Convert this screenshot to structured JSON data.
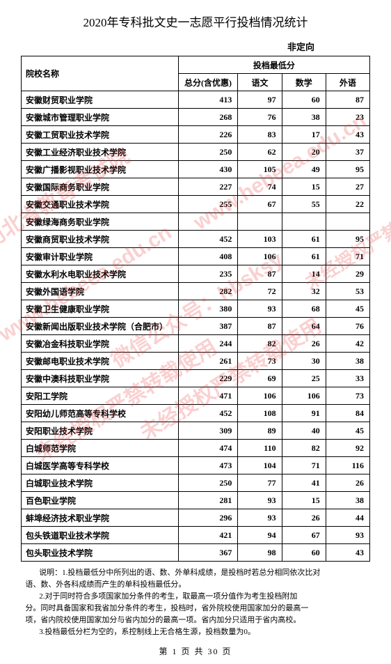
{
  "title": "2020年专科批文史一志愿平行投档情况统计",
  "subtitle": "非定向",
  "header": {
    "school": "院校名称",
    "score_group": "投档最低分",
    "total": "总分(含优惠)",
    "chinese": "语文",
    "math": "数学",
    "foreign": "外语"
  },
  "rows": [
    {
      "name": "安徽财贸职业学院",
      "total": "413",
      "ch": "97",
      "ma": "60",
      "fo": "87"
    },
    {
      "name": "安徽城市管理职业学院",
      "total": "268",
      "ch": "76",
      "ma": "38",
      "fo": "23"
    },
    {
      "name": "安徽工贸职业技术学院",
      "total": "226",
      "ch": "83",
      "ma": "17",
      "fo": "43"
    },
    {
      "name": "安徽工业经济职业技术学院",
      "total": "250",
      "ch": "62",
      "ma": "20",
      "fo": "37"
    },
    {
      "name": "安徽广播影视职业技术学院",
      "total": "430",
      "ch": "105",
      "ma": "49",
      "fo": "95"
    },
    {
      "name": "安徽国际商务职业学院",
      "total": "227",
      "ch": "74",
      "ma": "15",
      "fo": "27"
    },
    {
      "name": "安徽交通职业技术学院",
      "total": "255",
      "ch": "67",
      "ma": "55",
      "fo": "22"
    },
    {
      "name": "安徽绿海商务职业学院",
      "total": "",
      "ch": "",
      "ma": "",
      "fo": ""
    },
    {
      "name": "安徽商贸职业技术学院",
      "total": "452",
      "ch": "103",
      "ma": "61",
      "fo": "95"
    },
    {
      "name": "安徽审计职业学院",
      "total": "408",
      "ch": "106",
      "ma": "61",
      "fo": "71"
    },
    {
      "name": "安徽水利水电职业技术学院",
      "total": "235",
      "ch": "87",
      "ma": "14",
      "fo": "29"
    },
    {
      "name": "安徽外国语学院",
      "total": "282",
      "ch": "72",
      "ma": "32",
      "fo": "53"
    },
    {
      "name": "安徽卫生健康职业学院",
      "total": "380",
      "ch": "93",
      "ma": "68",
      "fo": "45"
    },
    {
      "name": "安徽新闻出版职业技术学院（合肥市）",
      "total": "387",
      "ch": "87",
      "ma": "64",
      "fo": "76"
    },
    {
      "name": "安徽冶金科技职业学院",
      "total": "244",
      "ch": "82",
      "ma": "26",
      "fo": "42"
    },
    {
      "name": "安徽邮电职业技术学院",
      "total": "261",
      "ch": "73",
      "ma": "30",
      "fo": "38"
    },
    {
      "name": "安徽中澳科技职业学院",
      "total": "229",
      "ch": "69",
      "ma": "25",
      "fo": "33"
    },
    {
      "name": "安阳工学院",
      "total": "471",
      "ch": "106",
      "ma": "106",
      "fo": "73"
    },
    {
      "name": "安阳幼儿师范高等专科学校",
      "total": "452",
      "ch": "108",
      "ma": "91",
      "fo": "84"
    },
    {
      "name": "安阳职业技术学院",
      "total": "309",
      "ch": "89",
      "ma": "40",
      "fo": "45"
    },
    {
      "name": "白城师范学院",
      "total": "474",
      "ch": "110",
      "ma": "82",
      "fo": "92"
    },
    {
      "name": "白城医学高等专科学校",
      "total": "473",
      "ch": "104",
      "ma": "71",
      "fo": "116"
    },
    {
      "name": "白城职业技术学院",
      "total": "250",
      "ch": "77",
      "ma": "41",
      "fo": "26"
    },
    {
      "name": "百色职业学院",
      "total": "281",
      "ch": "93",
      "ma": "15",
      "fo": "38"
    },
    {
      "name": "蚌埠经济技术职业学院",
      "total": "296",
      "ch": "93",
      "ma": "26",
      "fo": "44"
    },
    {
      "name": "包头铁道职业技术学院",
      "total": "421",
      "ch": "94",
      "ma": "67",
      "fo": "93"
    },
    {
      "name": "包头职业技术学院",
      "total": "367",
      "ch": "98",
      "ma": "60",
      "fo": "43"
    }
  ],
  "notes": {
    "line1": "说明：1.投档最低分中所列出的语、数、外单科成绩，是投档时若总分相同依次比对",
    "line1b": "语、数、外各科成绩而产生的单科投档最低分。",
    "line2": "2.对于同时符合多项国家加分条件的考生，取最高一项分值作为考生投档附加",
    "line2b": "分。同时具备国家和我省加分条件的考生，投档时，省外院校使用国家加分的最高一",
    "line2c": "项，省内院校使用国家加分与省内加分的最高一项。省内加分只适用于省内高校。",
    "line3": "3.投档最低分栏为空的，系控制线上无合格生源，投档数量为0。"
  },
  "footer": {
    "prefix": "第",
    "page": "1",
    "mid": "页 共",
    "total": "30",
    "suffix": "页"
  },
  "watermarks": {
    "a": "河北省教育考试院",
    "b": "www.hebeea.edu.cn",
    "c": "微信公众号：hbsksy",
    "d": "未经授权严禁转载使用"
  }
}
